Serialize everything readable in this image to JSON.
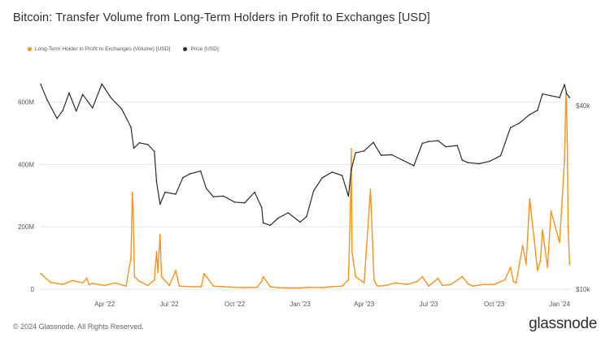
{
  "chart_data": {
    "type": "line",
    "title": "Bitcoin: Transfer Volume from Long-Term Holders in Profit to Exchanges [USD]",
    "series": [
      {
        "name": "Long-Term Holder in Profit to Exchanges (Volume) [USD]",
        "color": "#f7931a",
        "axis": "left",
        "x": [
          "2022-01-01",
          "2022-01-15",
          "2022-02-01",
          "2022-02-15",
          "2022-03-01",
          "2022-03-07",
          "2022-03-10",
          "2022-03-15",
          "2022-04-01",
          "2022-04-15",
          "2022-05-01",
          "2022-05-08",
          "2022-05-10",
          "2022-05-11",
          "2022-05-12",
          "2022-05-13",
          "2022-05-20",
          "2022-06-01",
          "2022-06-10",
          "2022-06-13",
          "2022-06-15",
          "2022-06-18",
          "2022-06-20",
          "2022-07-01",
          "2022-07-10",
          "2022-07-15",
          "2022-08-01",
          "2022-08-15",
          "2022-08-19",
          "2022-09-01",
          "2022-09-15",
          "2022-10-01",
          "2022-10-15",
          "2022-11-01",
          "2022-11-08",
          "2022-11-10",
          "2022-11-20",
          "2022-12-01",
          "2022-12-15",
          "2023-01-01",
          "2023-01-15",
          "2023-02-01",
          "2023-02-15",
          "2023-03-01",
          "2023-03-10",
          "2023-03-13",
          "2023-03-14",
          "2023-03-15",
          "2023-03-20",
          "2023-04-01",
          "2023-04-10",
          "2023-04-15",
          "2023-04-18",
          "2023-04-20",
          "2023-05-01",
          "2023-05-15",
          "2023-06-01",
          "2023-06-15",
          "2023-06-22",
          "2023-07-01",
          "2023-07-14",
          "2023-07-20",
          "2023-08-01",
          "2023-08-17",
          "2023-08-25",
          "2023-09-01",
          "2023-09-15",
          "2023-10-01",
          "2023-10-16",
          "2023-10-24",
          "2023-10-28",
          "2023-11-01",
          "2023-11-10",
          "2023-11-15",
          "2023-11-20",
          "2023-12-01",
          "2023-12-05",
          "2023-12-08",
          "2023-12-15",
          "2023-12-20",
          "2024-01-01",
          "2024-01-05",
          "2024-01-08",
          "2024-01-10",
          "2024-01-11",
          "2024-01-12",
          "2024-01-13",
          "2024-01-15"
        ],
        "values": [
          50000000,
          22000000,
          15000000,
          28000000,
          20000000,
          35000000,
          15000000,
          18000000,
          12000000,
          20000000,
          10000000,
          100000000,
          310000000,
          260000000,
          140000000,
          40000000,
          25000000,
          12000000,
          30000000,
          120000000,
          55000000,
          175000000,
          40000000,
          12000000,
          60000000,
          10000000,
          8000000,
          8000000,
          50000000,
          10000000,
          8000000,
          6000000,
          5000000,
          6000000,
          25000000,
          40000000,
          8000000,
          5000000,
          4000000,
          4000000,
          6000000,
          5000000,
          8000000,
          10000000,
          30000000,
          290000000,
          450000000,
          120000000,
          40000000,
          20000000,
          320000000,
          30000000,
          15000000,
          10000000,
          12000000,
          20000000,
          15000000,
          25000000,
          40000000,
          10000000,
          35000000,
          12000000,
          15000000,
          40000000,
          18000000,
          10000000,
          15000000,
          15000000,
          30000000,
          70000000,
          25000000,
          20000000,
          140000000,
          80000000,
          290000000,
          60000000,
          90000000,
          190000000,
          70000000,
          250000000,
          150000000,
          300000000,
          420000000,
          630000000,
          560000000,
          450000000,
          200000000,
          80000000
        ]
      },
      {
        "name": "Price [USD]",
        "color": "#2b2b2b",
        "axis": "right",
        "x": [
          "2022-01-01",
          "2022-01-10",
          "2022-01-24",
          "2022-02-01",
          "2022-02-10",
          "2022-02-20",
          "2022-03-01",
          "2022-03-15",
          "2022-03-28",
          "2022-04-10",
          "2022-04-25",
          "2022-05-08",
          "2022-05-12",
          "2022-05-20",
          "2022-06-01",
          "2022-06-10",
          "2022-06-13",
          "2022-06-18",
          "2022-06-25",
          "2022-07-10",
          "2022-07-20",
          "2022-07-30",
          "2022-08-14",
          "2022-08-22",
          "2022-09-01",
          "2022-09-15",
          "2022-10-01",
          "2022-10-15",
          "2022-10-29",
          "2022-11-08",
          "2022-11-10",
          "2022-11-20",
          "2022-12-01",
          "2022-12-15",
          "2023-01-01",
          "2023-01-10",
          "2023-01-20",
          "2023-02-01",
          "2023-02-15",
          "2023-03-01",
          "2023-03-10",
          "2023-03-14",
          "2023-03-20",
          "2023-04-01",
          "2023-04-14",
          "2023-04-25",
          "2023-05-10",
          "2023-05-25",
          "2023-06-10",
          "2023-06-22",
          "2023-07-01",
          "2023-07-14",
          "2023-07-25",
          "2023-08-10",
          "2023-08-17",
          "2023-08-25",
          "2023-09-10",
          "2023-09-25",
          "2023-10-10",
          "2023-10-24",
          "2023-11-05",
          "2023-11-20",
          "2023-12-01",
          "2023-12-08",
          "2023-12-20",
          "2024-01-01",
          "2024-01-08",
          "2024-01-11",
          "2024-01-15"
        ],
        "values": [
          47000,
          41800,
          36300,
          38500,
          44000,
          38400,
          43500,
          39300,
          47100,
          42400,
          39000,
          34000,
          29000,
          30200,
          29800,
          28300,
          22500,
          19000,
          20800,
          20500,
          23200,
          23900,
          24400,
          21400,
          20100,
          20200,
          19300,
          19200,
          20800,
          18500,
          16500,
          16200,
          17100,
          17800,
          16600,
          17300,
          21000,
          23200,
          24200,
          23600,
          20200,
          24700,
          28000,
          28400,
          30300,
          27500,
          27600,
          26500,
          25400,
          30100,
          30500,
          30700,
          29300,
          29600,
          26500,
          26000,
          25800,
          26300,
          27400,
          33900,
          35000,
          37400,
          38600,
          43700,
          43100,
          42500,
          46900,
          43700,
          42500
        ]
      }
    ],
    "y_left": {
      "ticks": [
        "0",
        "200M",
        "400M",
        "600M"
      ],
      "range": [
        0,
        680000000
      ]
    },
    "y_right": {
      "ticks": [
        "$10k",
        "$40k"
      ],
      "scale": "log"
    },
    "x_ticks": [
      "Apr '22",
      "Jul '22",
      "Oct '22",
      "Jan '23",
      "Apr '23",
      "Jul '23",
      "Oct '23",
      "Jan '24"
    ],
    "x_range": [
      "2022-01-01",
      "2024-01-17"
    ],
    "grid": "horizontal",
    "legend_placement": "top-left"
  },
  "footer": "© 2024 Glassnode. All Rights Reserved.",
  "brand": "glassnode"
}
